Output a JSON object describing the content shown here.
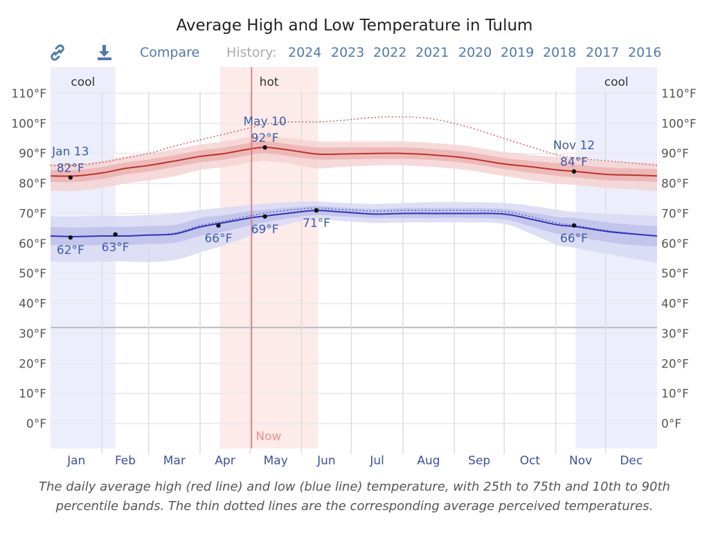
{
  "header": {
    "title": "Average High and Low Temperature in Tulum"
  },
  "toolbar": {
    "link_icon": "link-icon",
    "download_icon": "download-icon",
    "compare_label": "Compare",
    "history_label": "History:",
    "years": [
      "2024",
      "2023",
      "2022",
      "2021",
      "2020",
      "2019",
      "2018",
      "2017",
      "2016"
    ]
  },
  "colors": {
    "high_line": "#c0302a",
    "low_line": "#2f34b8",
    "high_band_inner": "#e8a5a3",
    "high_band_outer": "#f4d3d2",
    "low_band_inner": "#b3b6e6",
    "low_band_outer": "#d8d9f3",
    "cool_band": "#eceefb",
    "hot_band": "#fcebe8",
    "now_line": "#d46a6a",
    "link": "#4f79ad"
  },
  "caption": "The daily average high (red line) and low (blue line) temperature, with 25th to 75th and 10th to 90th percentile bands. The thin dotted lines are the corresponding average perceived temperatures.",
  "chart_data": {
    "type": "line",
    "title": "Average High and Low Temperature in Tulum",
    "xlabel": "",
    "ylabel": "",
    "ylim": [
      -8,
      112
    ],
    "yticks": [
      0,
      10,
      20,
      30,
      40,
      50,
      60,
      70,
      80,
      90,
      100,
      110
    ],
    "ytick_labels": [
      "0°F",
      "10°F",
      "20°F",
      "30°F",
      "40°F",
      "50°F",
      "60°F",
      "70°F",
      "80°F",
      "90°F",
      "100°F",
      "110°F"
    ],
    "x_unit": "day of year",
    "xlim": [
      0,
      365
    ],
    "month_labels": [
      "Jan",
      "Feb",
      "Mar",
      "Apr",
      "May",
      "Jun",
      "Jul",
      "Aug",
      "Sep",
      "Oct",
      "Nov",
      "Dec"
    ],
    "month_starts": [
      0,
      31,
      59,
      90,
      120,
      151,
      181,
      212,
      243,
      273,
      304,
      334
    ],
    "freezing_line": 32,
    "grid": true,
    "season_bands": [
      {
        "label": "cool",
        "start": 0,
        "end": 39,
        "type": "cool"
      },
      {
        "label": "hot",
        "start": 102,
        "end": 161,
        "type": "hot"
      },
      {
        "label": "cool",
        "start": 316,
        "end": 365,
        "type": "cool"
      }
    ],
    "now": {
      "label": "Now",
      "day": 121
    },
    "x": [
      0,
      15,
      31,
      45,
      59,
      75,
      90,
      105,
      120,
      130,
      145,
      160,
      175,
      195,
      212,
      230,
      250,
      273,
      290,
      305,
      316,
      335,
      350,
      365
    ],
    "series": [
      {
        "name": "Average high",
        "values": [
          82.5,
          82.5,
          83.5,
          85,
          86,
          87.5,
          89,
          90,
          91.5,
          92,
          91,
          89.8,
          89.8,
          90,
          90,
          89.5,
          88.5,
          86.5,
          85.5,
          84.5,
          84,
          83,
          82.8,
          82.5
        ]
      },
      {
        "name": "High 25th percentile",
        "values": [
          80.5,
          80.5,
          81.5,
          83,
          84,
          85.5,
          87,
          88,
          89.5,
          90,
          89,
          88,
          88,
          88.2,
          88.2,
          87.8,
          86.8,
          84.8,
          83.5,
          82.5,
          82,
          81,
          80.8,
          80.5
        ]
      },
      {
        "name": "High 75th percentile",
        "values": [
          84.5,
          84.5,
          85.5,
          87,
          88,
          89.5,
          91,
          92,
          93.5,
          94,
          93,
          92,
          92,
          92,
          92,
          91.5,
          90.5,
          88.5,
          87.5,
          86.8,
          86.3,
          85.3,
          85,
          84.8
        ]
      },
      {
        "name": "High 10th percentile",
        "values": [
          77.5,
          77.5,
          78.5,
          80,
          81,
          82.5,
          84.5,
          85.5,
          87,
          87.5,
          86.5,
          85,
          85.5,
          86,
          86,
          85.5,
          84.5,
          82.5,
          81,
          80,
          79.5,
          78.5,
          78,
          77.5
        ]
      },
      {
        "name": "High 90th percentile",
        "values": [
          86.5,
          86.5,
          87.5,
          89,
          90,
          91.5,
          93,
          94,
          95.5,
          96,
          95,
          94,
          94,
          94,
          94,
          93.5,
          92.5,
          90.5,
          89.5,
          88.8,
          88.3,
          87.3,
          87,
          86.8
        ]
      },
      {
        "name": "High perceived",
        "values": [
          86,
          86,
          87,
          88.5,
          90,
          92.5,
          94.5,
          96.5,
          98.5,
          99.8,
          100.5,
          100.5,
          101,
          102,
          102.2,
          101.5,
          99,
          95,
          92,
          89.5,
          88.5,
          87.5,
          86.8,
          86
        ]
      },
      {
        "name": "Average low",
        "values": [
          62.5,
          62.3,
          62.5,
          62.5,
          62.8,
          63.2,
          65.5,
          67,
          68.5,
          69.2,
          70.2,
          71,
          70.5,
          69.8,
          70,
          70,
          70,
          69.8,
          68,
          66.2,
          65.6,
          64,
          63.2,
          62.5
        ]
      },
      {
        "name": "Low 25th percentile",
        "values": [
          59.5,
          59.3,
          59.5,
          59.5,
          59.8,
          60.3,
          62.5,
          64,
          66,
          67.2,
          68.5,
          69.5,
          69,
          68.5,
          68.5,
          68.5,
          68.5,
          68,
          65.5,
          63.2,
          62.3,
          60.5,
          59.5,
          59
        ]
      },
      {
        "name": "Low 75th percentile",
        "values": [
          65.5,
          65.3,
          65.5,
          65.5,
          65.8,
          66.2,
          68.5,
          69.5,
          70.8,
          71.3,
          72,
          72.5,
          72,
          71.5,
          71.8,
          71.8,
          71.8,
          71.5,
          70.2,
          68.8,
          68.5,
          67,
          66.3,
          65.8
        ]
      },
      {
        "name": "Low 10th percentile",
        "values": [
          54,
          53.8,
          54,
          54,
          53.8,
          54.5,
          57,
          59.5,
          62.5,
          64.5,
          66.8,
          68.2,
          67.5,
          66.8,
          67,
          67,
          67,
          66.5,
          63,
          59.5,
          58.5,
          56.5,
          55,
          53.5
        ]
      },
      {
        "name": "Low 90th percentile",
        "values": [
          69,
          69,
          69.2,
          69.2,
          69.5,
          70,
          71.2,
          72,
          72.8,
          73.3,
          73.8,
          74,
          73.5,
          73.2,
          73.5,
          73.8,
          73.8,
          73.5,
          72.5,
          71.2,
          70.5,
          69.8,
          69.5,
          69.2
        ]
      },
      {
        "name": "Low perceived",
        "values": [
          62.5,
          62.3,
          62.5,
          62.5,
          62.8,
          63.5,
          66,
          67.5,
          69.2,
          70.2,
          71.2,
          71.8,
          71.3,
          70.8,
          71,
          71,
          71,
          70.6,
          68.8,
          66.8,
          66,
          64.3,
          63.3,
          62.5
        ]
      }
    ],
    "annotations": [
      {
        "day": 12,
        "value": 82,
        "label": "82°F",
        "date": "Jan 13",
        "series": "high",
        "position": "above"
      },
      {
        "day": 12,
        "value": 62,
        "label": "62°F",
        "series": "low",
        "position": "below"
      },
      {
        "day": 39,
        "value": 63,
        "label": "63°F",
        "series": "low",
        "position": "below"
      },
      {
        "day": 101,
        "value": 66,
        "label": "66°F",
        "series": "low",
        "position": "below"
      },
      {
        "day": 129,
        "value": 92,
        "label": "92°F",
        "date": "May 10",
        "series": "high",
        "position": "above"
      },
      {
        "day": 129,
        "value": 69,
        "label": "69°F",
        "series": "low",
        "position": "below"
      },
      {
        "day": 160,
        "value": 71,
        "label": "71°F",
        "series": "low",
        "position": "below"
      },
      {
        "day": 315,
        "value": 84,
        "label": "84°F",
        "date": "Nov 12",
        "series": "high",
        "position": "above"
      },
      {
        "day": 315,
        "value": 66,
        "label": "66°F",
        "series": "low",
        "position": "below"
      }
    ]
  }
}
